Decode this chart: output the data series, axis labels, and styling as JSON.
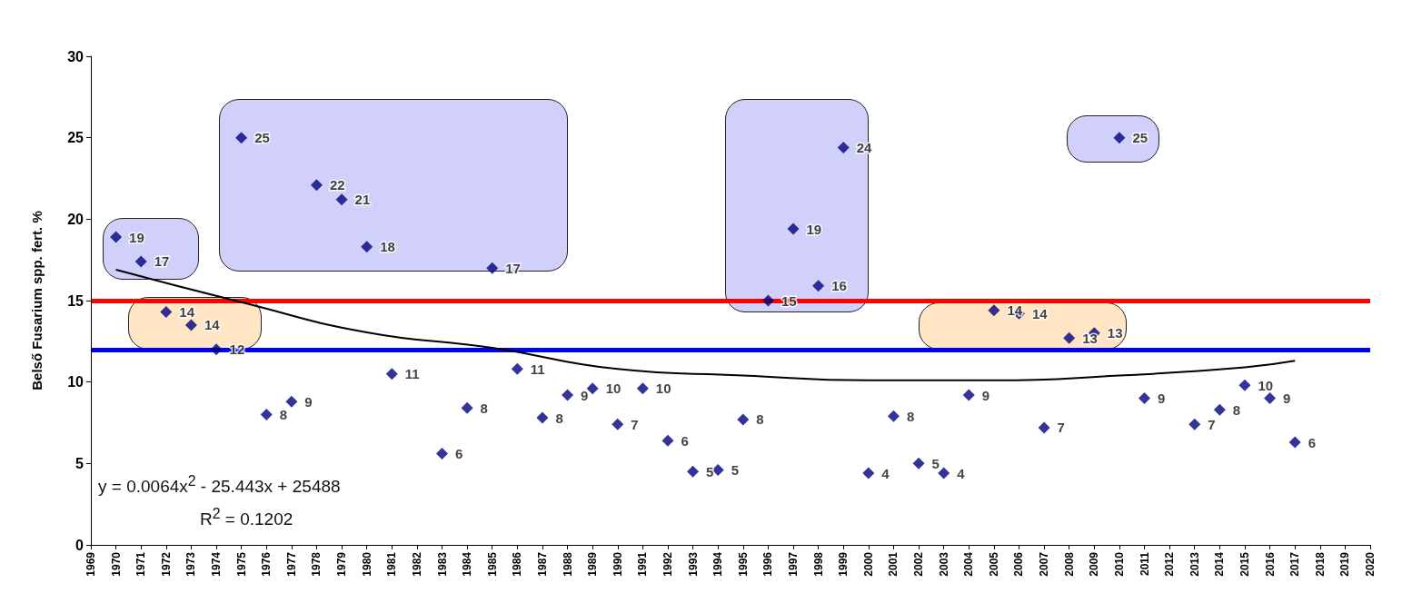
{
  "chart_data": {
    "type": "scatter",
    "ylabel": "Belső Fusarium spp. fert. %",
    "xlim": [
      1969,
      2020
    ],
    "xticks": [
      1969,
      1970,
      1971,
      1972,
      1973,
      1974,
      1975,
      1976,
      1977,
      1978,
      1979,
      1980,
      1981,
      1982,
      1983,
      1984,
      1985,
      1986,
      1987,
      1988,
      1989,
      1990,
      1991,
      1992,
      1993,
      1994,
      1995,
      1996,
      1997,
      1998,
      1999,
      2000,
      2001,
      2002,
      2003,
      2004,
      2005,
      2006,
      2007,
      2008,
      2009,
      2010,
      2011,
      2012,
      2013,
      2014,
      2015,
      2016,
      2017,
      2018,
      2019,
      2020
    ],
    "ylim": [
      0,
      30
    ],
    "yticks": [
      0,
      5,
      10,
      15,
      20,
      25,
      30
    ],
    "grid": false,
    "marker": "diamond",
    "series": [
      {
        "color": "#000080",
        "x": [
          1970,
          1971,
          1972,
          1973,
          1974,
          1975,
          1976,
          1977,
          1978,
          1979,
          1980,
          1981,
          1983,
          1984,
          1985,
          1986,
          1987,
          1988,
          1989,
          1990,
          1991,
          1992,
          1993,
          1994,
          1995,
          1996,
          1997,
          1998,
          1999,
          2000,
          2001,
          2002,
          2003,
          2004,
          2005,
          2006,
          2007,
          2008,
          2009,
          2010,
          2011,
          2013,
          2014,
          2015,
          2016,
          2017
        ],
        "values": [
          18.9,
          17.4,
          14.3,
          13.5,
          12.0,
          25.0,
          8.0,
          8.8,
          22.1,
          21.2,
          18.3,
          10.5,
          5.6,
          8.4,
          17.0,
          10.8,
          7.8,
          9.2,
          9.6,
          7.4,
          9.6,
          6.4,
          4.5,
          4.6,
          7.7,
          15.0,
          19.4,
          15.9,
          24.4,
          4.4,
          7.9,
          5.0,
          4.4,
          9.2,
          14.4,
          14.2,
          7.2,
          12.7,
          13.0,
          25.0,
          9.0,
          7.4,
          8.3,
          9.8,
          9.0,
          6.3
        ],
        "value_labels": [
          "19",
          "17",
          "14",
          "14",
          "12",
          "25",
          "8",
          "9",
          "22",
          "21",
          "18",
          "11",
          "6",
          "8",
          "17",
          "11",
          "8",
          "9",
          "10",
          "7",
          "10",
          "6",
          "5",
          "5",
          "8",
          "15",
          "19",
          "16",
          "24",
          "4",
          "8",
          "5",
          "4",
          "9",
          "14",
          "14",
          "7",
          "13",
          "13",
          "25",
          "9",
          "7",
          "8",
          "10",
          "9",
          "6"
        ]
      },
      {
        "type": "line",
        "color": "#000000",
        "marker": "none",
        "line_style": "solid",
        "x": [
          1970,
          1975,
          1980,
          1985,
          1990,
          1995,
          2000,
          2005,
          2010,
          2015,
          2017
        ],
        "values": [
          16.9,
          14.9,
          13.05,
          12.1,
          10.8,
          10.4,
          10.1,
          10.1,
          10.4,
          10.9,
          11.3
        ]
      }
    ],
    "ref_lines": [
      {
        "axis": "y",
        "value": 15,
        "label": null,
        "color": "#ff0000"
      },
      {
        "axis": "y",
        "value": 12,
        "label": null,
        "color": "#0000ff"
      }
    ],
    "annotations": [
      "y = 0.0064x$^{2}$ - 25.443x + 25488",
      "R$^{2}$ = 0.1202"
    ]
  }
}
